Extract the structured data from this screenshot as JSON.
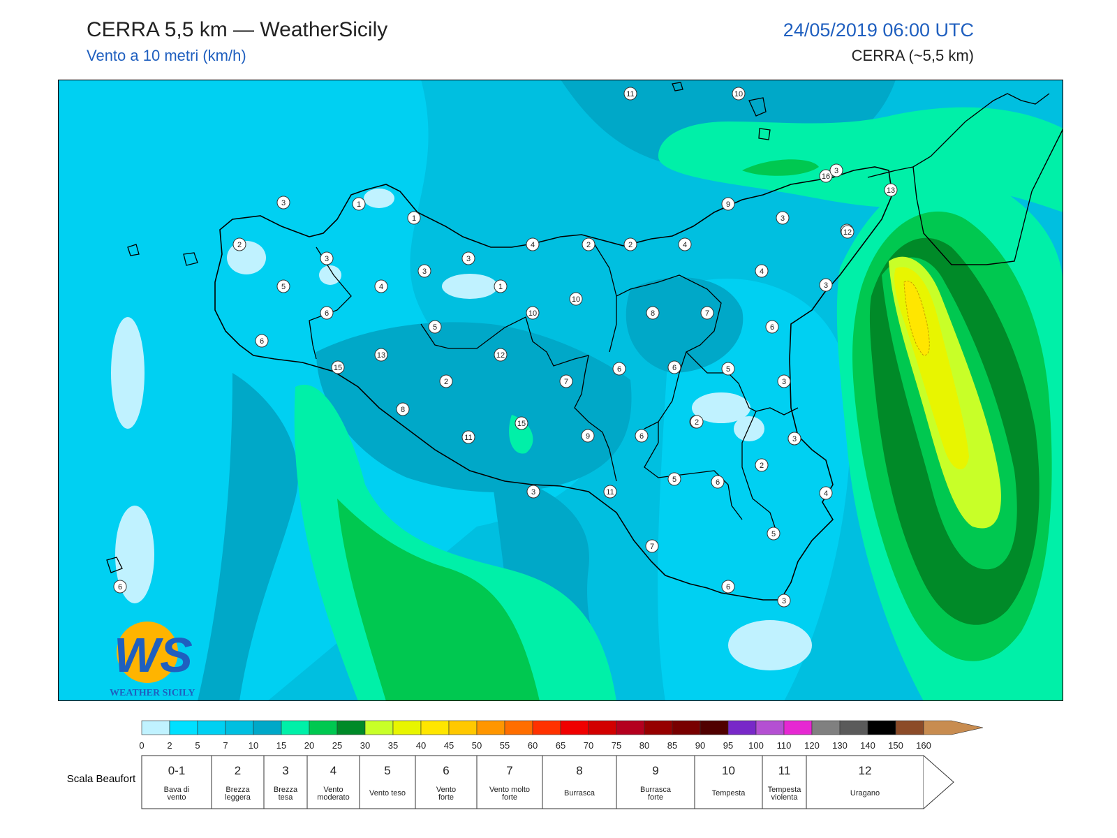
{
  "header": {
    "title": "CERRA 5,5 km — WeatherSicily",
    "subtitle": "Vento a 10 metri (km/h)",
    "datetime": "24/05/2019 06:00 UTC",
    "model": "CERRA (~5,5 km)"
  },
  "map": {
    "region": "Sicilia",
    "labels": [
      "11",
      "10",
      "16",
      "13",
      "3",
      "1",
      "1",
      "3",
      "2",
      "3",
      "3",
      "5",
      "4",
      "3",
      "1",
      "4",
      "2",
      "2",
      "4",
      "9",
      "3",
      "12",
      "4",
      "3",
      "6",
      "6",
      "5",
      "10",
      "10",
      "8",
      "7",
      "6",
      "6",
      "15",
      "13",
      "12",
      "2",
      "7",
      "6",
      "5",
      "3",
      "3",
      "8",
      "15",
      "11",
      "9",
      "6",
      "2",
      "5",
      "6",
      "2",
      "3",
      "11",
      "4",
      "7",
      "6",
      "3",
      "5",
      "6",
      "3",
      "2",
      "12"
    ],
    "logo_text": "WEATHER SICILY",
    "logo_letters": "WS"
  },
  "legend": {
    "ticks": [
      "0",
      "2",
      "5",
      "7",
      "10",
      "15",
      "20",
      "25",
      "30",
      "35",
      "40",
      "45",
      "50",
      "55",
      "60",
      "65",
      "70",
      "75",
      "80",
      "85",
      "90",
      "95",
      "100",
      "110",
      "120",
      "130",
      "140",
      "150",
      "160"
    ],
    "colors": [
      "#c0f2ff",
      "#00e0ff",
      "#00d0f2",
      "#00bfe0",
      "#00a8c8",
      "#00f0a8",
      "#00c850",
      "#008a28",
      "#c8ff28",
      "#e8f500",
      "#ffe600",
      "#ffc800",
      "#ff9600",
      "#ff6e00",
      "#ff3200",
      "#f00000",
      "#d20000",
      "#b4001e",
      "#960000",
      "#780000",
      "#500000",
      "#7828c8",
      "#b450d2",
      "#e628d2",
      "#808080",
      "#5a5a5a",
      "#000000",
      "#8c4b28",
      "#c88c50"
    ],
    "beaufort_title": "Scala Beaufort",
    "beaufort": [
      {
        "num": "0-1",
        "desc": "Bava di vento"
      },
      {
        "num": "2",
        "desc": "Brezza leggera"
      },
      {
        "num": "3",
        "desc": "Brezza tesa"
      },
      {
        "num": "4",
        "desc": "Vento moderato"
      },
      {
        "num": "5",
        "desc": "Vento teso"
      },
      {
        "num": "6",
        "desc": "Vento forte"
      },
      {
        "num": "7",
        "desc": "Vento molto forte"
      },
      {
        "num": "8",
        "desc": "Burrasca"
      },
      {
        "num": "9",
        "desc": "Burrasca forte"
      },
      {
        "num": "10",
        "desc": "Tempesta"
      },
      {
        "num": "11",
        "desc": "Tempesta violenta"
      },
      {
        "num": "12",
        "desc": "Uragano"
      }
    ]
  }
}
